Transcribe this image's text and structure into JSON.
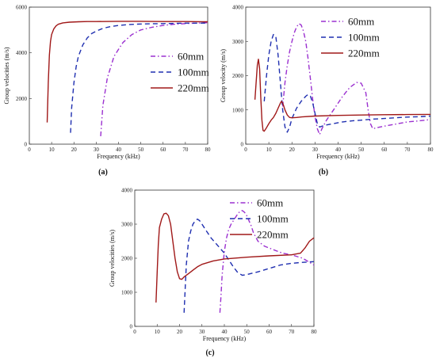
{
  "chart_data": [
    {
      "type": "line",
      "panel_label": "(a)",
      "xlabel": "Frequency (kHz)",
      "ylabel": "Group velocities (m/s)",
      "xlim": [
        0,
        80
      ],
      "ylim": [
        0,
        6000
      ],
      "xticks": [
        "0",
        "10",
        "20",
        "30",
        "40",
        "50",
        "60",
        "70",
        "80"
      ],
      "yticks": [
        "0",
        "2000",
        "4000",
        "6000"
      ],
      "legend_position": "right-middle",
      "series": [
        {
          "name": "60mm",
          "color": "#9b30d0",
          "dash": "6,3,1.5,3",
          "x": [
            32,
            33,
            35,
            38,
            42,
            46,
            50,
            55,
            60,
            65,
            70,
            75,
            80
          ],
          "y": [
            350,
            1700,
            2900,
            3850,
            4450,
            4800,
            5000,
            5120,
            5200,
            5250,
            5280,
            5300,
            5320
          ]
        },
        {
          "name": "100mm",
          "color": "#1f2fb0",
          "dash": "6,4",
          "x": [
            18.5,
            19,
            20,
            21,
            22,
            24,
            26,
            28,
            30,
            33,
            36,
            40,
            45,
            50,
            55,
            60,
            65,
            70,
            75,
            80
          ],
          "y": [
            500,
            1600,
            2700,
            3400,
            3850,
            4350,
            4650,
            4850,
            4950,
            5070,
            5140,
            5200,
            5240,
            5260,
            5270,
            5280,
            5290,
            5300,
            5300,
            5300
          ]
        },
        {
          "name": "220mm",
          "color": "#a01818",
          "dash": "",
          "x": [
            8,
            8.5,
            9,
            9.5,
            10,
            11,
            12,
            13,
            15,
            18,
            22,
            26,
            30,
            40,
            50,
            60,
            70,
            80
          ],
          "y": [
            950,
            2700,
            3900,
            4500,
            4800,
            5050,
            5180,
            5250,
            5310,
            5340,
            5360,
            5370,
            5370,
            5380,
            5380,
            5370,
            5370,
            5360
          ]
        }
      ]
    },
    {
      "type": "line",
      "panel_label": "(b)",
      "xlabel": "Frequency (kHz)",
      "ylabel": "Group velocity (m/s)",
      "xlim": [
        0,
        80
      ],
      "ylim": [
        0,
        4000
      ],
      "xticks": [
        "0",
        "10",
        "20",
        "30",
        "40",
        "50",
        "60",
        "70",
        "80"
      ],
      "yticks": [
        "0",
        "1000",
        "2000",
        "3000",
        "4000"
      ],
      "legend_position": "top-right",
      "series": [
        {
          "name": "60mm",
          "color": "#9b30d0",
          "dash": "6,3,1.5,3",
          "x": [
            16,
            17,
            18,
            19,
            20,
            21,
            22,
            23,
            24,
            25,
            26,
            27,
            28,
            29,
            30,
            31,
            32,
            33,
            35,
            38,
            42,
            45,
            48,
            50,
            52,
            53,
            54,
            55,
            58,
            62,
            66,
            70,
            75,
            80
          ],
          "y": [
            1100,
            1800,
            2300,
            2700,
            3000,
            3250,
            3420,
            3520,
            3480,
            3300,
            3000,
            2500,
            1900,
            1300,
            800,
            450,
            280,
            450,
            700,
            1000,
            1400,
            1650,
            1800,
            1780,
            1500,
            1000,
            600,
            450,
            500,
            550,
            600,
            650,
            680,
            720
          ]
        },
        {
          "name": "100mm",
          "color": "#1f2fb0",
          "dash": "6,4",
          "x": [
            8,
            9,
            10,
            11,
            12,
            13,
            14,
            15,
            16,
            17,
            18,
            19,
            20,
            22,
            24,
            26,
            27,
            28,
            29,
            30,
            31,
            32,
            34,
            38,
            42,
            46,
            50,
            55,
            60,
            65,
            70,
            75,
            80
          ],
          "y": [
            1250,
            2000,
            2600,
            3000,
            3200,
            3150,
            2600,
            1800,
            1000,
            500,
            350,
            500,
            750,
            1050,
            1250,
            1400,
            1450,
            1400,
            1200,
            900,
            600,
            500,
            550,
            600,
            650,
            680,
            700,
            730,
            750,
            770,
            790,
            800,
            820
          ]
        },
        {
          "name": "220mm",
          "color": "#a01818",
          "dash": "",
          "x": [
            4,
            4.5,
            5,
            5.5,
            6,
            6.5,
            7,
            7.5,
            8,
            9,
            10,
            11,
            12,
            13,
            14,
            15,
            15.5,
            16,
            16.5,
            17,
            18,
            19,
            20,
            22,
            25,
            30,
            40,
            50,
            60,
            70,
            80
          ],
          "y": [
            1300,
            1800,
            2300,
            2480,
            2200,
            1400,
            700,
            400,
            380,
            480,
            600,
            700,
            780,
            900,
            1050,
            1200,
            1250,
            1200,
            1100,
            1000,
            850,
            780,
            770,
            780,
            800,
            820,
            840,
            850,
            860,
            865,
            870
          ]
        }
      ]
    },
    {
      "type": "line",
      "panel_label": "(c)",
      "xlabel": "Frequency (kHz)",
      "ylabel": "Group velocities (m/s)",
      "xlim": [
        0,
        80
      ],
      "ylim": [
        0,
        4000
      ],
      "xticks": [
        "0",
        "10",
        "20",
        "30",
        "40",
        "50",
        "60",
        "70",
        "80"
      ],
      "yticks": [
        "0",
        "1000",
        "2000",
        "3000",
        "4000"
      ],
      "legend_position": "top-right",
      "series": [
        {
          "name": "60mm",
          "color": "#9b30d0",
          "dash": "6,3,1.5,3",
          "x": [
            38,
            38.5,
            39,
            40,
            41,
            42,
            43,
            44,
            45,
            46,
            47,
            48,
            49,
            50,
            51,
            52,
            53,
            55,
            58,
            62,
            66,
            70,
            75,
            80
          ],
          "y": [
            400,
            900,
            1500,
            2200,
            2600,
            2850,
            3000,
            3100,
            3200,
            3300,
            3380,
            3400,
            3350,
            3250,
            3100,
            2950,
            2750,
            2500,
            2350,
            2250,
            2150,
            2100,
            2000,
            1800
          ]
        },
        {
          "name": "100mm",
          "color": "#1f2fb0",
          "dash": "6,4",
          "x": [
            22,
            22.5,
            23,
            24,
            25,
            26,
            27,
            28,
            29,
            30,
            32,
            34,
            36,
            38,
            40,
            42,
            44,
            46,
            48,
            50,
            55,
            60,
            65,
            70,
            75,
            80
          ],
          "y": [
            400,
            1100,
            1800,
            2500,
            2800,
            3000,
            3100,
            3150,
            3100,
            3000,
            2800,
            2600,
            2450,
            2300,
            2150,
            1950,
            1750,
            1580,
            1500,
            1520,
            1600,
            1700,
            1800,
            1850,
            1880,
            1900
          ]
        },
        {
          "name": "220mm",
          "color": "#a01818",
          "dash": "",
          "x": [
            9.5,
            10,
            10.5,
            11,
            12,
            13,
            14,
            15,
            16,
            17,
            18,
            19,
            20,
            21,
            22,
            24,
            26,
            28,
            30,
            35,
            40,
            50,
            60,
            70,
            74,
            76,
            78,
            80
          ],
          "y": [
            700,
            1600,
            2400,
            2900,
            3150,
            3300,
            3320,
            3250,
            3000,
            2500,
            2000,
            1600,
            1400,
            1380,
            1450,
            1550,
            1650,
            1750,
            1820,
            1920,
            1980,
            2030,
            2070,
            2100,
            2150,
            2300,
            2500,
            2600
          ]
        }
      ]
    }
  ]
}
